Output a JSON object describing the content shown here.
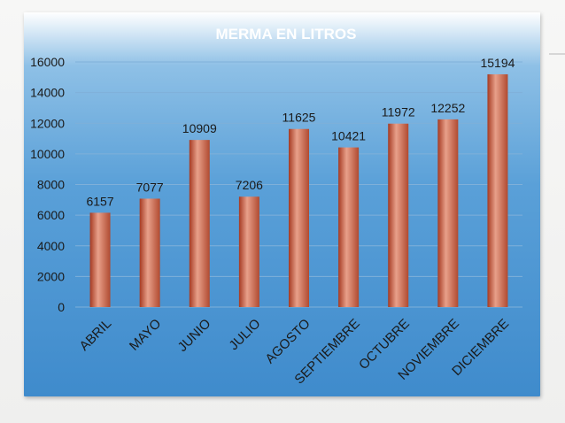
{
  "chart_data": {
    "type": "bar",
    "title": "MERMA EN LITROS",
    "categories": [
      "ABRIL",
      "MAYO",
      "JUNIO",
      "JULIO",
      "AGOSTO",
      "SEPTIEMBRE",
      "OCTUBRE",
      "NOVIEMBRE",
      "DICIEMBRE"
    ],
    "values": [
      6157,
      7077,
      10909,
      7206,
      11625,
      10421,
      11972,
      12252,
      15194
    ],
    "value_labels": [
      "6157",
      "7077",
      "10909",
      "7206",
      "11625",
      "10421",
      "11972",
      "12252",
      "15194"
    ],
    "ylim": [
      0,
      16000
    ],
    "yticks": [
      "0",
      "2000",
      "4000",
      "6000",
      "8000",
      "10000",
      "12000",
      "14000",
      "16000"
    ],
    "xlabel": "",
    "ylabel": "",
    "grid": true,
    "legend": false,
    "colors": {
      "bar_light": "#e8a08a",
      "bar_dark": "#b8452a",
      "grid": "#7fb0d9",
      "background_top": "#ffffff",
      "background_bottom": "#3f8bcc"
    }
  }
}
